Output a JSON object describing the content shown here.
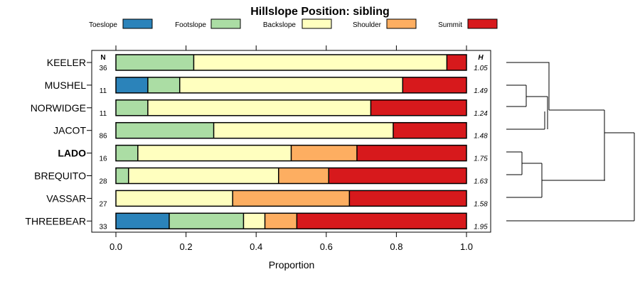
{
  "chart_data": {
    "type": "bar",
    "orientation": "horizontal",
    "stacked": true,
    "title": "Hillslope Position: sibling",
    "xlabel": "Proportion",
    "xlim": [
      0,
      1
    ],
    "xticks": [
      "0.0",
      "0.2",
      "0.4",
      "0.6",
      "0.8",
      "1.0"
    ],
    "n_header": "N",
    "h_header": "H",
    "legend": {
      "placement": "top",
      "entries": [
        {
          "name": "Toeslope",
          "color": "#2b83ba"
        },
        {
          "name": "Footslope",
          "color": "#abdda4"
        },
        {
          "name": "Backslope",
          "color": "#ffffbf"
        },
        {
          "name": "Shoulder",
          "color": "#fdae61"
        },
        {
          "name": "Summit",
          "color": "#d7191c"
        }
      ]
    },
    "rows": [
      {
        "label": "KEELER",
        "n": "36",
        "h": "1.05",
        "bold": false,
        "values": [
          0,
          0.222,
          0.722,
          0,
          0.056
        ]
      },
      {
        "label": "MUSHEL",
        "n": "11",
        "h": "1.49",
        "bold": false,
        "values": [
          0.091,
          0.091,
          0.636,
          0,
          0.182
        ]
      },
      {
        "label": "NORWIDGE",
        "n": "11",
        "h": "1.24",
        "bold": false,
        "values": [
          0,
          0.091,
          0.636,
          0,
          0.273
        ]
      },
      {
        "label": "JACOT",
        "n": "86",
        "h": "1.48",
        "bold": false,
        "values": [
          0,
          0.279,
          0.512,
          0,
          0.209
        ]
      },
      {
        "label": "LADO",
        "n": "16",
        "h": "1.75",
        "bold": true,
        "values": [
          0,
          0.0625,
          0.4375,
          0.1875,
          0.3125
        ]
      },
      {
        "label": "BREQUITO",
        "n": "28",
        "h": "1.63",
        "bold": false,
        "values": [
          0,
          0.036,
          0.428,
          0.143,
          0.393
        ]
      },
      {
        "label": "VASSAR",
        "n": "27",
        "h": "1.58",
        "bold": false,
        "values": [
          0,
          0,
          0.333,
          0.333,
          0.334
        ]
      },
      {
        "label": "THREEBEAR",
        "n": "33",
        "h": "1.95",
        "bold": false,
        "values": [
          0.152,
          0.212,
          0.061,
          0.091,
          0.484
        ]
      }
    ]
  }
}
